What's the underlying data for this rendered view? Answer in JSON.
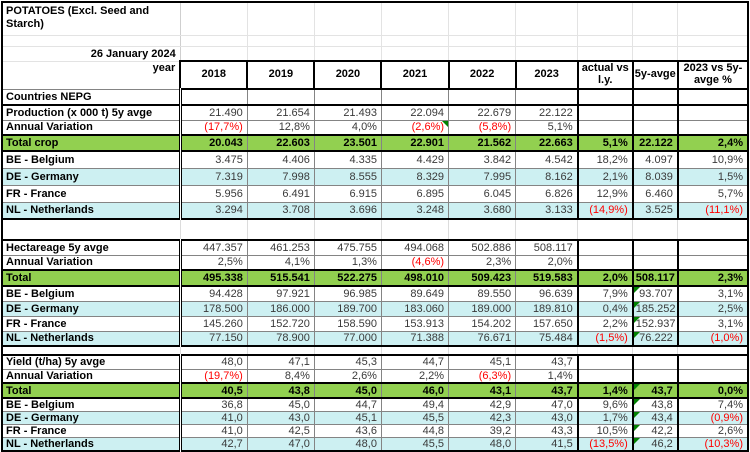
{
  "title": "POTATOES (Excl. Seed and Starch)",
  "date": "26 January 2024",
  "year_label": "year",
  "countries_label": "Countries NEPG",
  "columns": [
    "2018",
    "2019",
    "2020",
    "2021",
    "2022",
    "2023",
    "actual vs l.y.",
    "5y-avge",
    "2023 vs 5y-avge %"
  ],
  "colors": {
    "total_row_green": "#92D050",
    "country_band_cyan": "#CDF0F2",
    "negative_red": "#FF0000",
    "corner_marker_green": "#028102"
  },
  "sections": [
    {
      "name": "production",
      "rows": [
        {
          "label": "Production (x 000 t) 5y avge",
          "style": "stat",
          "values": [
            "21.490",
            "21.654",
            "21.493",
            "22.094",
            "22.679",
            "22.122",
            "",
            "",
            ""
          ]
        },
        {
          "label": "Annual Variation",
          "style": "stat",
          "values": [
            "(17,7%)",
            "12,8%",
            "4,0%",
            "(2,6%)",
            "(5,8%)",
            "5,1%",
            "",
            "",
            ""
          ],
          "markers": [
            {
              "col": 3,
              "pos": "tr"
            }
          ]
        },
        {
          "label": "Total crop",
          "style": "total",
          "values": [
            "20.043",
            "22.603",
            "23.501",
            "22.901",
            "21.562",
            "22.663",
            "5,1%",
            "22.122",
            "2,4%"
          ]
        },
        {
          "label": "BE - Belgium",
          "style": "country",
          "values": [
            "3.475",
            "4.406",
            "4.335",
            "4.429",
            "3.842",
            "4.542",
            "18,2%",
            "4.097",
            "10,9%"
          ]
        },
        {
          "label": "DE - Germany",
          "style": "country",
          "values": [
            "7.319",
            "7.998",
            "8.555",
            "8.329",
            "7.995",
            "8.162",
            "2,1%",
            "8.039",
            "1,5%"
          ]
        },
        {
          "label": "FR - France",
          "style": "country",
          "values": [
            "5.956",
            "6.491",
            "6.915",
            "6.895",
            "6.045",
            "6.826",
            "12,9%",
            "6.460",
            "5,7%"
          ]
        },
        {
          "label": "NL - Netherlands",
          "style": "country",
          "values": [
            "3.294",
            "3.708",
            "3.696",
            "3.248",
            "3.680",
            "3.133",
            "(14,9%)",
            "3.525",
            "(11,1%)"
          ]
        }
      ]
    },
    {
      "name": "hectareage",
      "rows": [
        {
          "label": "Hectareage 5y avge",
          "style": "stat",
          "values": [
            "447.357",
            "461.253",
            "475.755",
            "494.068",
            "502.886",
            "508.117",
            "",
            "",
            ""
          ]
        },
        {
          "label": "Annual Variation",
          "style": "stat",
          "values": [
            "2,5%",
            "4,1%",
            "1,3%",
            "(4,6%)",
            "2,3%",
            "2,0%",
            "",
            "",
            ""
          ]
        },
        {
          "label": "Total",
          "style": "total",
          "values": [
            "495.338",
            "515.541",
            "522.275",
            "498.010",
            "509.423",
            "519.583",
            "2,0%",
            "508.117",
            "2,3%"
          ]
        },
        {
          "label": "BE - Belgium",
          "style": "country",
          "values": [
            "94.428",
            "97.921",
            "96.985",
            "89.649",
            "89.550",
            "96.639",
            "7,9%",
            "93.707",
            "3,1%"
          ],
          "markers": [
            {
              "col": 7,
              "pos": "tl"
            }
          ]
        },
        {
          "label": "DE - Germany",
          "style": "country",
          "values": [
            "178.500",
            "186.000",
            "189.700",
            "183.060",
            "189.000",
            "189.810",
            "0,4%",
            "185.252",
            "2,5%"
          ],
          "markers": [
            {
              "col": 7,
              "pos": "tl"
            }
          ]
        },
        {
          "label": "FR - France",
          "style": "country",
          "values": [
            "145.260",
            "152.720",
            "158.590",
            "153.913",
            "154.202",
            "157.650",
            "2,2%",
            "152.937",
            "3,1%"
          ],
          "markers": [
            {
              "col": 7,
              "pos": "tl"
            }
          ]
        },
        {
          "label": "NL - Netherlands",
          "style": "country",
          "values": [
            "77.150",
            "78.900",
            "77.000",
            "71.388",
            "76.671",
            "75.484",
            "(1,5%)",
            "76.222",
            "(1,0%)"
          ],
          "markers": [
            {
              "col": 7,
              "pos": "tl"
            }
          ]
        }
      ]
    },
    {
      "name": "yield",
      "rows": [
        {
          "label": "Yield (t/ha) 5y avge",
          "style": "stat",
          "values": [
            "48,0",
            "47,1",
            "45,3",
            "44,7",
            "45,1",
            "43,7",
            "",
            "",
            ""
          ]
        },
        {
          "label": "Annual Variation",
          "style": "stat",
          "values": [
            "(19,7%)",
            "8,4%",
            "2,6%",
            "2,2%",
            "(6,3%)",
            "1,4%",
            "",
            "",
            ""
          ]
        },
        {
          "label": "Total",
          "style": "total",
          "values": [
            "40,5",
            "43,8",
            "45,0",
            "46,0",
            "43,1",
            "43,7",
            "1,4%",
            "43,7",
            "0,0%"
          ],
          "markers": [
            {
              "col": 7,
              "pos": "tl"
            }
          ]
        },
        {
          "label": "BE - Belgium",
          "style": "country",
          "values": [
            "36,8",
            "45,0",
            "44,7",
            "49,4",
            "42,9",
            "47,0",
            "9,6%",
            "43,8",
            "7,4%"
          ],
          "markers": [
            {
              "col": 7,
              "pos": "tl"
            }
          ]
        },
        {
          "label": "DE - Germany",
          "style": "country",
          "values": [
            "41,0",
            "43,0",
            "45,1",
            "45,5",
            "42,3",
            "43,0",
            "1,7%",
            "43,4",
            "(0,9%)"
          ],
          "markers": [
            {
              "col": 7,
              "pos": "tl"
            }
          ]
        },
        {
          "label": "FR - France",
          "style": "country",
          "values": [
            "41,0",
            "42,5",
            "43,6",
            "44,8",
            "39,2",
            "43,3",
            "10,5%",
            "42,2",
            "2,6%"
          ],
          "markers": [
            {
              "col": 7,
              "pos": "tl"
            }
          ]
        },
        {
          "label": "NL - Netherlands",
          "style": "country",
          "values": [
            "42,7",
            "47,0",
            "48,0",
            "45,5",
            "48,0",
            "41,5",
            "(13,5%)",
            "46,2",
            "(10,3%)"
          ],
          "markers": [
            {
              "col": 7,
              "pos": "tl"
            }
          ]
        }
      ]
    }
  ]
}
